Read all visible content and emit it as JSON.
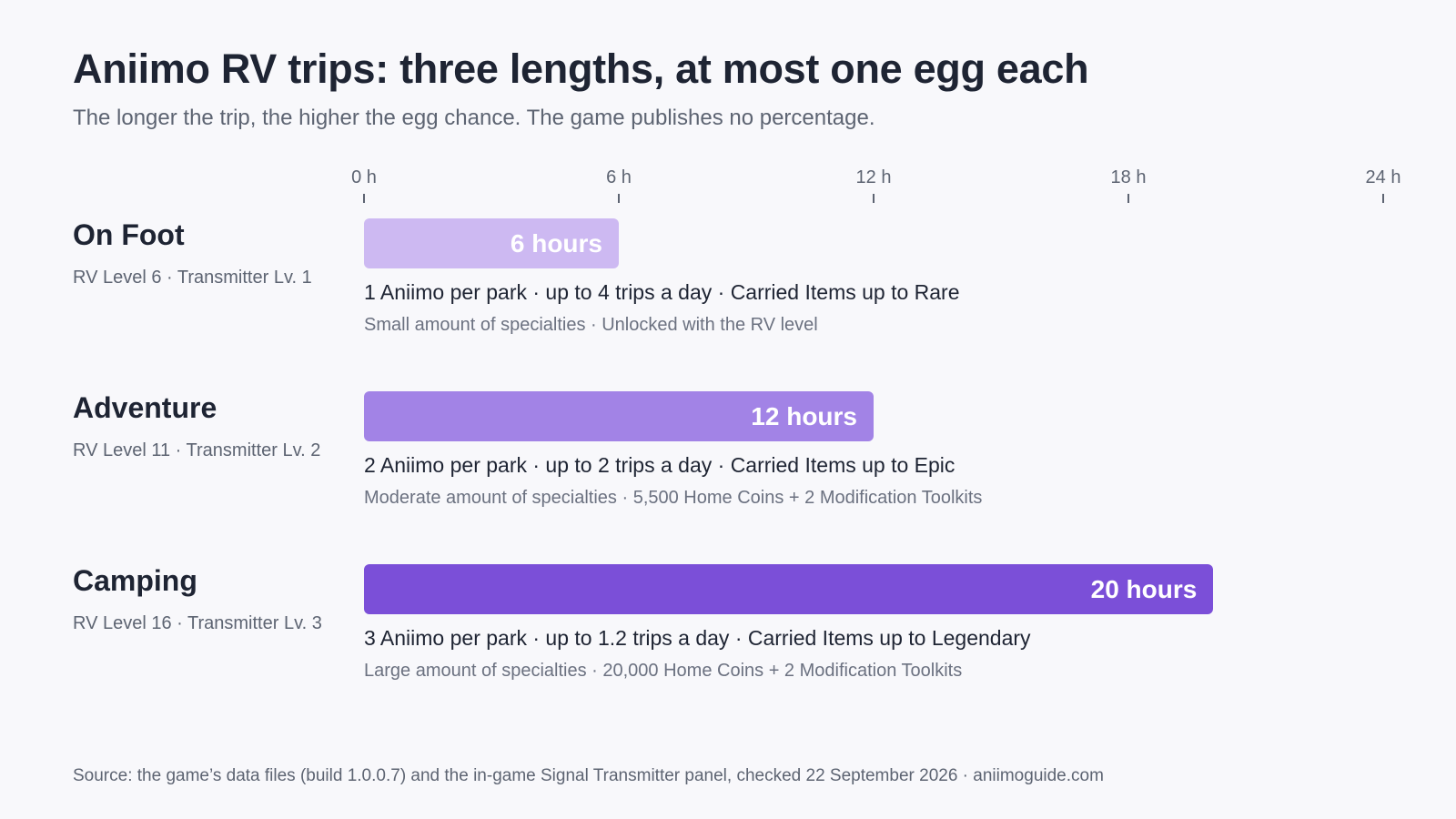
{
  "title": "Aniimo RV trips: three lengths, at most one egg each",
  "subtitle": "The longer the trip, the higher the egg chance. The game publishes no percentage.",
  "source": "Source: the game’s data files (build 1.0.0.7) and the in-game Signal Transmitter panel, checked 22 September 2026 · aniimoguide.com",
  "chart_data": {
    "type": "bar",
    "orientation": "horizontal",
    "xlim": [
      0,
      24
    ],
    "ticks": [
      {
        "value": 0,
        "label": "0 h"
      },
      {
        "value": 6,
        "label": "6 h"
      },
      {
        "value": 12,
        "label": "12 h"
      },
      {
        "value": 18,
        "label": "18 h"
      },
      {
        "value": 24,
        "label": "24 h"
      }
    ],
    "categories": [
      "On Foot",
      "Adventure",
      "Camping"
    ],
    "values": [
      6,
      12,
      20
    ],
    "rows": [
      {
        "name": "On Foot",
        "requirement": "RV Level 6 · Transmitter Lv. 1",
        "hours": 6,
        "bar_label": "6 hours",
        "color": "#cdb9f2",
        "line1": "1 Aniimo per park · up to 4 trips a day · Carried Items up to Rare",
        "line2": "Small amount of specialties · Unlocked with the RV level"
      },
      {
        "name": "Adventure",
        "requirement": "RV Level 11 · Transmitter Lv. 2",
        "hours": 12,
        "bar_label": "12 hours",
        "color": "#a283e6",
        "line1": "2 Aniimo per park · up to 2 trips a day · Carried Items up to Epic",
        "line2": "Moderate amount of specialties · 5,500 Home Coins + 2 Modification Toolkits"
      },
      {
        "name": "Camping",
        "requirement": "RV Level 16 · Transmitter Lv. 3",
        "hours": 20,
        "bar_label": "20 hours",
        "color": "#7b4fd8",
        "line1": "3 Aniimo per park · up to 1.2 trips a day · Carried Items up to Legendary",
        "line2": "Large amount of specialties · 20,000 Home Coins + 2 Modification Toolkits"
      }
    ]
  }
}
